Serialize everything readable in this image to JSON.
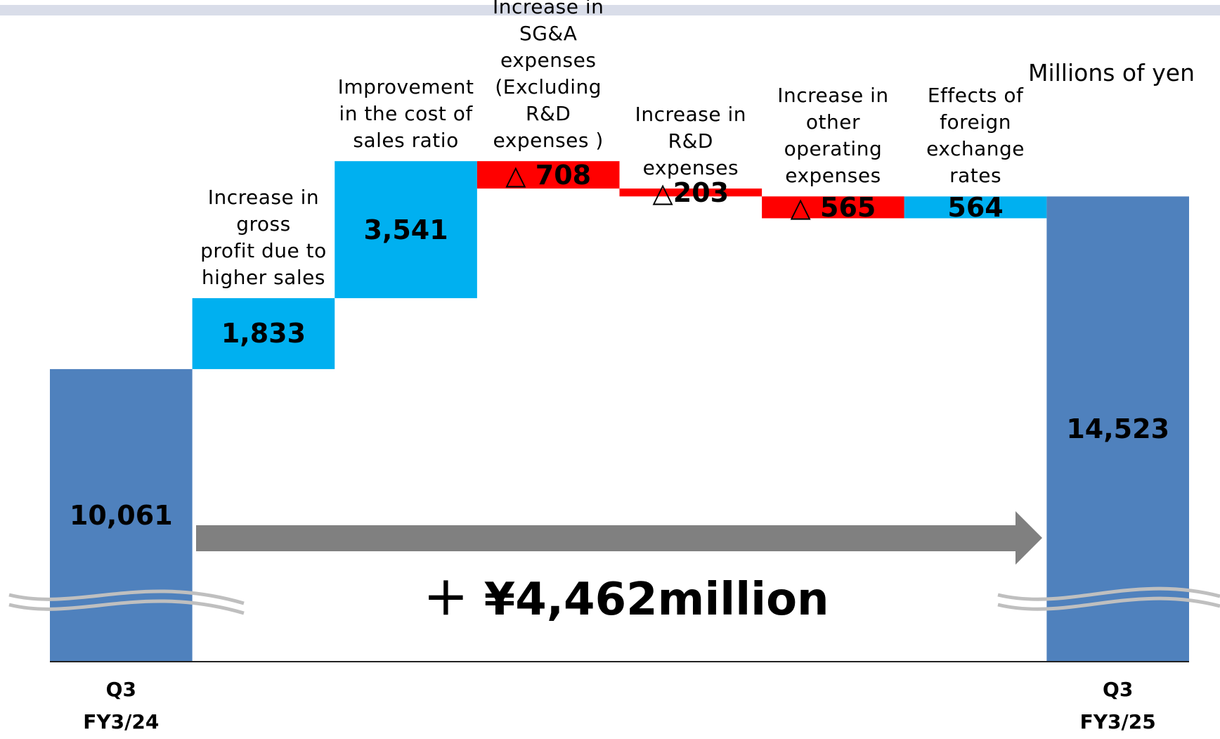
{
  "chart_data": {
    "type": "waterfall",
    "unit_label": "Millions of yen",
    "annotation": "＋ ¥4,462million",
    "categories": [
      "Q3\nFY3/24",
      "Increase in\ngross\nprofit due to\nhigher sales",
      "Improvement\nin the cost of\nsales ratio",
      "Increase in\nSG&A\nexpenses\n(Excluding\nR&D\nexpenses )",
      "Increase in\nR&D\nexpenses",
      "Increase in\nother\noperating\nexpenses",
      "Effects of\nforeign\nexchange\nrates",
      "Q3\nFY3/25"
    ],
    "measure": [
      "absolute",
      "relative",
      "relative",
      "relative",
      "relative",
      "relative",
      "relative",
      "total"
    ],
    "values": [
      10061,
      1833,
      3541,
      -708,
      -203,
      -565,
      564,
      14523
    ],
    "value_labels": [
      "10,061",
      "1,833",
      "3,541",
      "△ 708",
      "△203",
      "△ 565",
      "564",
      "14,523"
    ],
    "colors": {
      "total": "#4f81bd",
      "increase": "#00b0f0",
      "decrease": "#ff0000"
    },
    "ylim": [
      2500,
      19600
    ]
  }
}
